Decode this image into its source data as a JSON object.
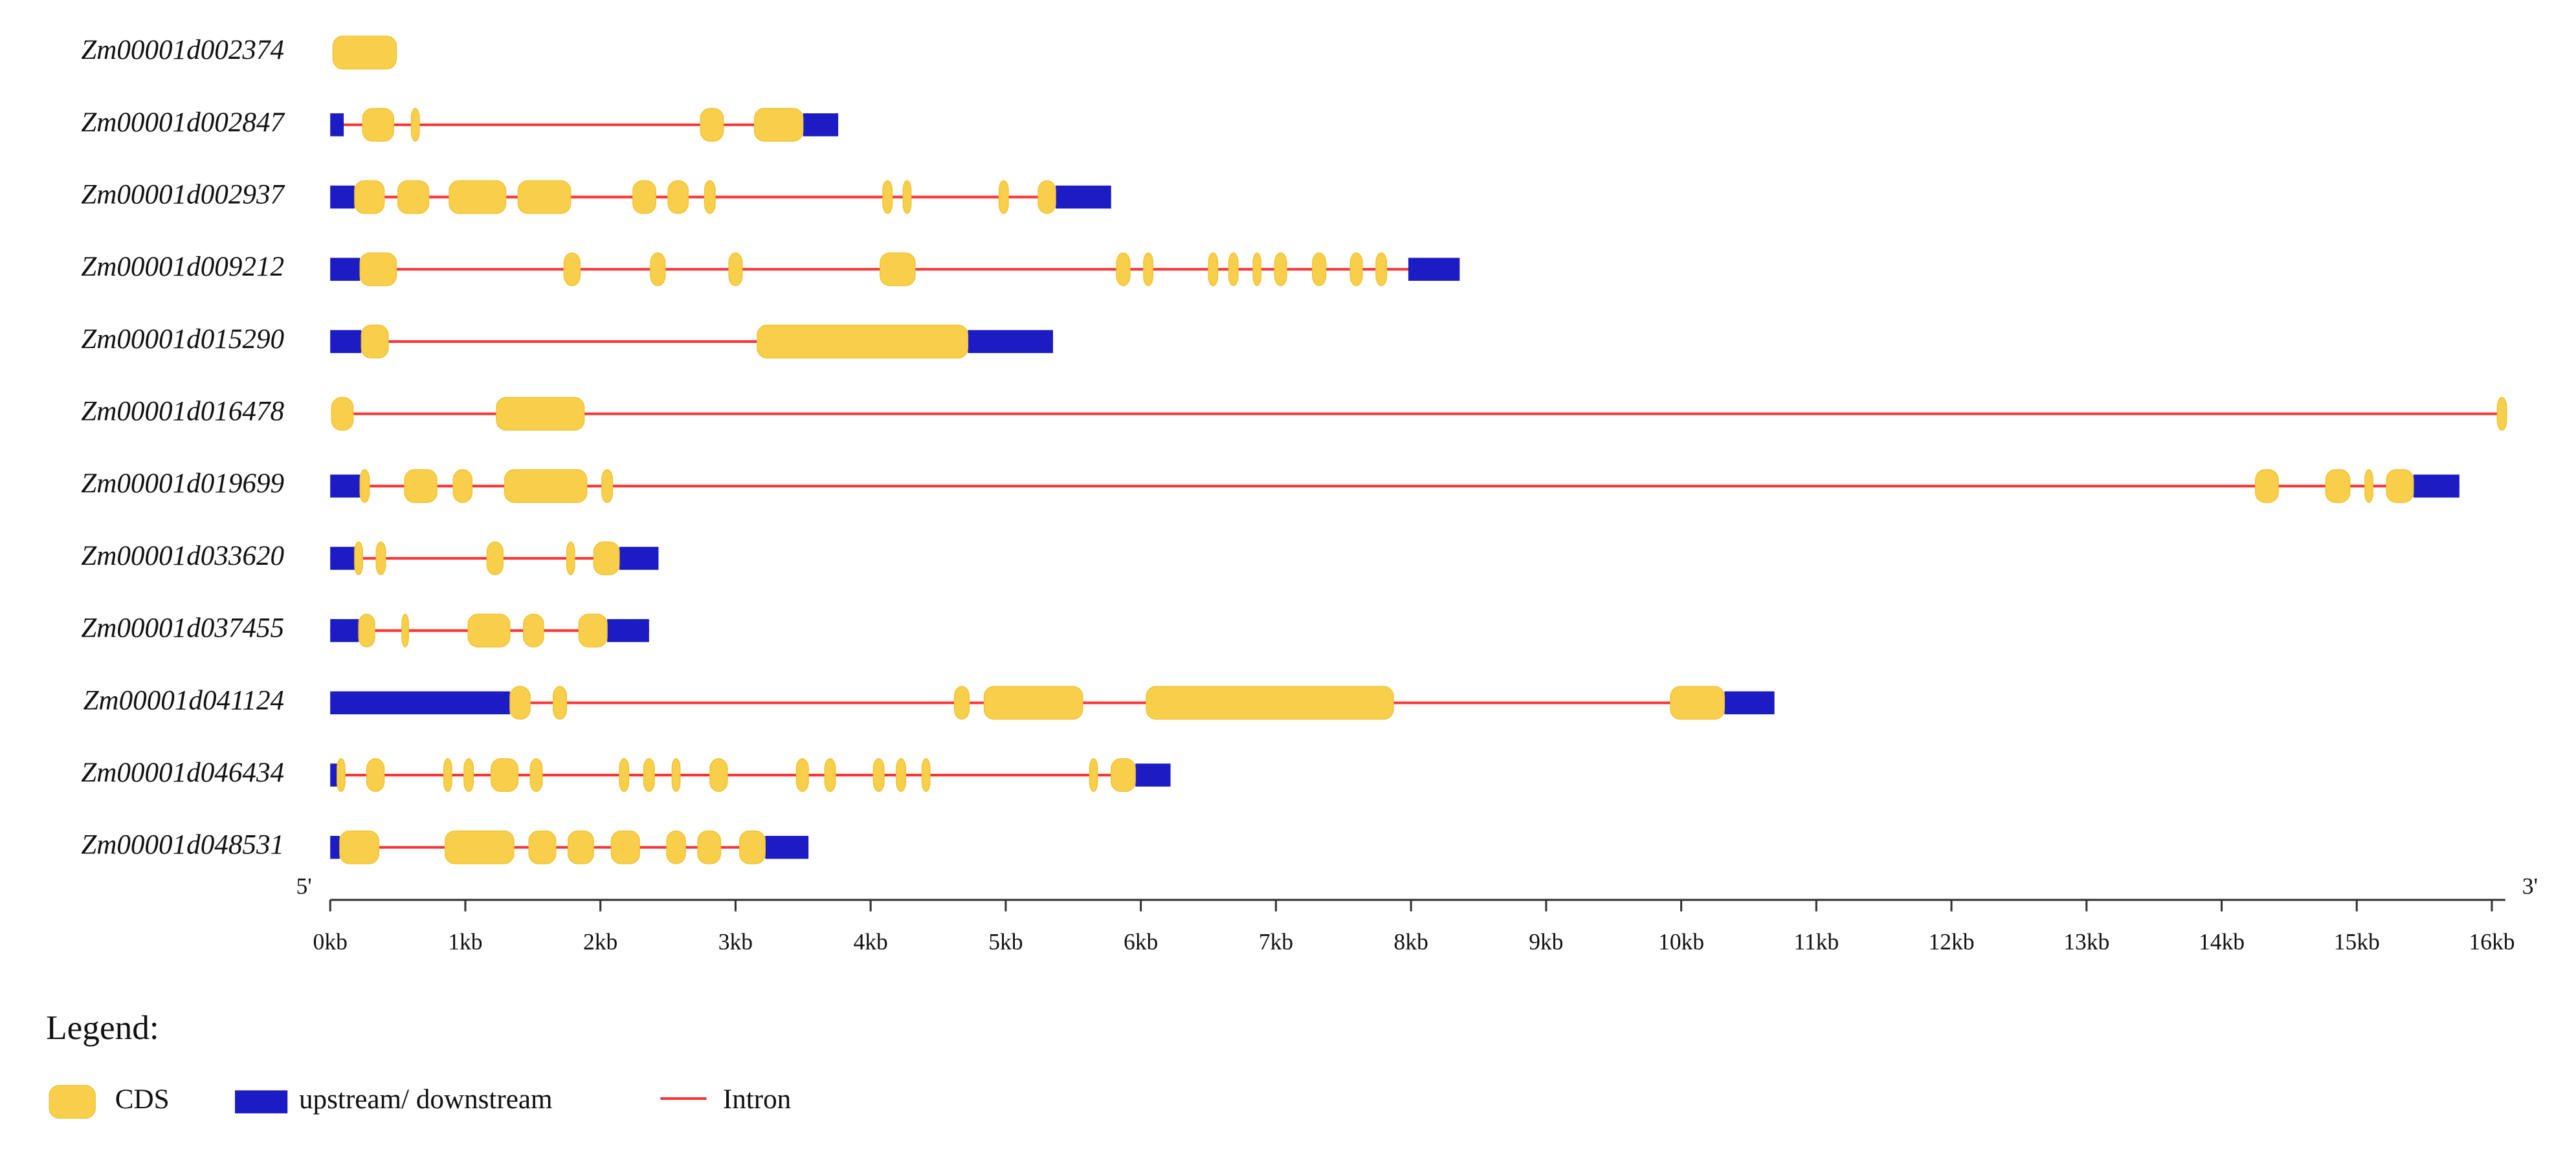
{
  "chart_data": {
    "type": "gene-structure",
    "xlim": [
      0,
      16.1
    ],
    "xticks": [
      {
        "value": 0,
        "label": "0kb"
      },
      {
        "value": 1,
        "label": "1kb"
      },
      {
        "value": 2,
        "label": "2kb"
      },
      {
        "value": 3,
        "label": "3kb"
      },
      {
        "value": 4,
        "label": "4kb"
      },
      {
        "value": 5,
        "label": "5kb"
      },
      {
        "value": 6,
        "label": "6kb"
      },
      {
        "value": 7,
        "label": "7kb"
      },
      {
        "value": 8,
        "label": "8kb"
      },
      {
        "value": 9,
        "label": "9kb"
      },
      {
        "value": 10,
        "label": "10kb"
      },
      {
        "value": 11,
        "label": "11kb"
      },
      {
        "value": 12,
        "label": "12kb"
      },
      {
        "value": 13,
        "label": "13kb"
      },
      {
        "value": 14,
        "label": "14kb"
      },
      {
        "value": 15,
        "label": "15kb"
      },
      {
        "value": 16,
        "label": "16kb"
      }
    ],
    "five_prime": "5'",
    "three_prime": "3'",
    "colors": {
      "cds": "#f8cf4a",
      "utr": "#1c1cc4",
      "intron": "#ff3333"
    },
    "legend": {
      "title": "Legend:",
      "cds": "CDS",
      "utr": "upstream/ downstream",
      "intron": "Intron"
    },
    "genes": [
      {
        "name": "Zm00001d002374",
        "start": 0.02,
        "end": 0.49,
        "utr": [],
        "cds": [
          [
            0.02,
            0.49
          ]
        ]
      },
      {
        "name": "Zm00001d002847",
        "start": 0,
        "end": 3.76,
        "utr": [
          [
            0,
            0.1
          ],
          [
            3.5,
            3.76
          ]
        ],
        "cds": [
          [
            0.24,
            0.47
          ],
          [
            0.6,
            0.66
          ],
          [
            2.74,
            2.91
          ],
          [
            3.14,
            3.5
          ]
        ]
      },
      {
        "name": "Zm00001d002937",
        "start": 0,
        "end": 5.78,
        "utr": [
          [
            0,
            0.18
          ],
          [
            5.37,
            5.78
          ]
        ],
        "cds": [
          [
            0.18,
            0.4
          ],
          [
            0.5,
            0.73
          ],
          [
            0.88,
            1.3
          ],
          [
            1.39,
            1.78
          ],
          [
            2.24,
            2.41
          ],
          [
            2.5,
            2.65
          ],
          [
            2.77,
            2.85
          ],
          [
            4.09,
            4.16
          ],
          [
            4.24,
            4.3
          ],
          [
            4.95,
            5.02
          ],
          [
            5.24,
            5.37
          ]
        ]
      },
      {
        "name": "Zm00001d009212",
        "start": 0,
        "end": 8.36,
        "utr": [
          [
            0,
            0.22
          ],
          [
            7.98,
            8.36
          ]
        ],
        "cds": [
          [
            0.22,
            0.49
          ],
          [
            1.73,
            1.85
          ],
          [
            2.37,
            2.48
          ],
          [
            2.95,
            3.05
          ],
          [
            4.07,
            4.33
          ],
          [
            5.82,
            5.92
          ],
          [
            6.02,
            6.09
          ],
          [
            6.5,
            6.57
          ],
          [
            6.65,
            6.72
          ],
          [
            6.83,
            6.89
          ],
          [
            6.99,
            7.08
          ],
          [
            7.27,
            7.37
          ],
          [
            7.55,
            7.64
          ],
          [
            7.74,
            7.82
          ]
        ]
      },
      {
        "name": "Zm00001d015290",
        "start": 0,
        "end": 5.35,
        "utr": [
          [
            0,
            0.23
          ],
          [
            4.72,
            5.35
          ]
        ],
        "cds": [
          [
            0.23,
            0.43
          ],
          [
            3.16,
            4.72
          ]
        ]
      },
      {
        "name": "Zm00001d016478",
        "start": 0.01,
        "end": 16.11,
        "utr": [],
        "cds": [
          [
            0.01,
            0.17
          ],
          [
            1.23,
            1.88
          ],
          [
            16.04,
            16.11
          ]
        ]
      },
      {
        "name": "Zm00001d019699",
        "start": 0,
        "end": 15.76,
        "utr": [
          [
            0,
            0.22
          ],
          [
            15.42,
            15.76
          ]
        ],
        "cds": [
          [
            0.22,
            0.29
          ],
          [
            0.55,
            0.79
          ],
          [
            0.91,
            1.05
          ],
          [
            1.29,
            1.9
          ],
          [
            2.01,
            2.09
          ],
          [
            14.25,
            14.42
          ],
          [
            14.77,
            14.95
          ],
          [
            15.06,
            15.12
          ],
          [
            15.22,
            15.42
          ]
        ]
      },
      {
        "name": "Zm00001d033620",
        "start": 0,
        "end": 2.43,
        "utr": [
          [
            0,
            0.18
          ],
          [
            2.14,
            2.43
          ]
        ],
        "cds": [
          [
            0.18,
            0.24
          ],
          [
            0.34,
            0.41
          ],
          [
            1.16,
            1.28
          ],
          [
            1.75,
            1.81
          ],
          [
            1.95,
            2.14
          ]
        ]
      },
      {
        "name": "Zm00001d037455",
        "start": 0,
        "end": 2.36,
        "utr": [
          [
            0,
            0.21
          ],
          [
            2.05,
            2.36
          ]
        ],
        "cds": [
          [
            0.21,
            0.33
          ],
          [
            0.53,
            0.58
          ],
          [
            1.02,
            1.33
          ],
          [
            1.43,
            1.58
          ],
          [
            1.84,
            2.05
          ]
        ]
      },
      {
        "name": "Zm00001d041124",
        "start": 0,
        "end": 10.69,
        "utr": [
          [
            0,
            1.33
          ],
          [
            10.32,
            10.69
          ]
        ],
        "cds": [
          [
            1.33,
            1.48
          ],
          [
            1.65,
            1.75
          ],
          [
            4.62,
            4.73
          ],
          [
            4.84,
            5.57
          ],
          [
            6.04,
            7.87
          ],
          [
            9.92,
            10.32
          ]
        ]
      },
      {
        "name": "Zm00001d046434",
        "start": 0,
        "end": 6.22,
        "utr": [
          [
            0,
            0.05
          ],
          [
            5.96,
            6.22
          ]
        ],
        "cds": [
          [
            0.05,
            0.11
          ],
          [
            0.27,
            0.4
          ],
          [
            0.84,
            0.9
          ],
          [
            0.99,
            1.06
          ],
          [
            1.19,
            1.39
          ],
          [
            1.48,
            1.57
          ],
          [
            2.14,
            2.21
          ],
          [
            2.32,
            2.4
          ],
          [
            2.53,
            2.59
          ],
          [
            2.81,
            2.94
          ],
          [
            3.45,
            3.54
          ],
          [
            3.66,
            3.74
          ],
          [
            4.02,
            4.1
          ],
          [
            4.19,
            4.26
          ],
          [
            4.38,
            4.44
          ],
          [
            5.62,
            5.68
          ],
          [
            5.78,
            5.96
          ]
        ]
      },
      {
        "name": "Zm00001d048531",
        "start": 0,
        "end": 3.54,
        "utr": [
          [
            0,
            0.07
          ],
          [
            3.22,
            3.54
          ]
        ],
        "cds": [
          [
            0.07,
            0.36
          ],
          [
            0.85,
            1.36
          ],
          [
            1.47,
            1.67
          ],
          [
            1.76,
            1.95
          ],
          [
            2.08,
            2.29
          ],
          [
            2.49,
            2.63
          ],
          [
            2.72,
            2.89
          ],
          [
            3.03,
            3.22
          ]
        ]
      }
    ]
  }
}
